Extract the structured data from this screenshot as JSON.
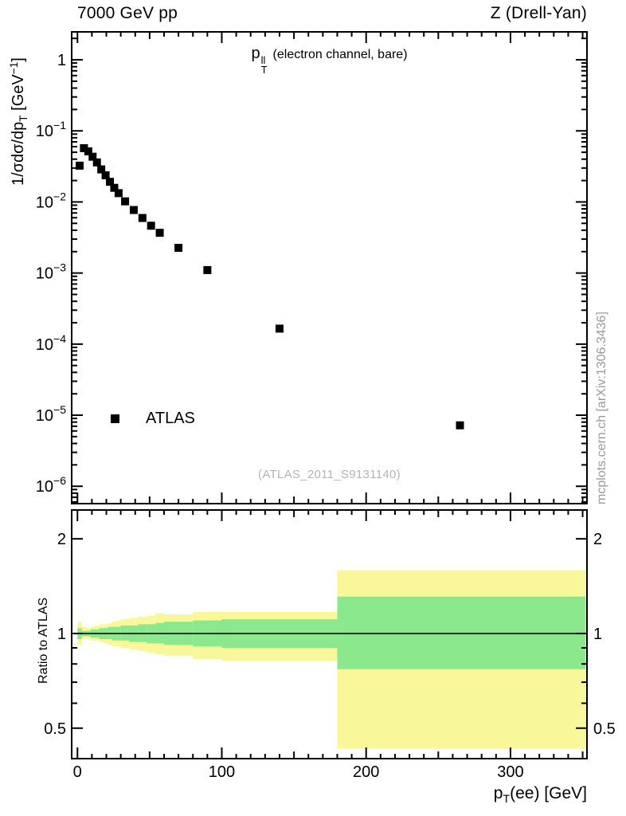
{
  "header": {
    "left": "7000 GeV pp",
    "right": "Z (Drell-Yan)"
  },
  "legend": {
    "label": "ATLAS",
    "marker": "black-square"
  },
  "watermark": "(ATLAS_2011_S9131140)",
  "side_note": "mcplots.cern.ch [arXiv:1306.3436]",
  "annotation": {
    "base": "p",
    "sup": "ll",
    "sub": "T",
    "suffix": "(electron channel, bare)"
  },
  "labels": {
    "main_y": {
      "prefix": "1/σdσ/dp",
      "sub": "T",
      "mid": " [GeV",
      "sup": "−1",
      "end": "]"
    },
    "ratio_y": "Ratio to ATLAS",
    "x": {
      "base": "p",
      "sub": "T",
      "suffix": "(ee) [GeV]"
    }
  },
  "chart_data": [
    {
      "type": "scatter",
      "name": "zpt-spectrum",
      "title": "p_T^ll (electron channel, bare)",
      "xlabel": "p_T(ee) [GeV]",
      "ylabel": "1/σdσ/dp_T [GeV^-1]",
      "yscale": "log",
      "xscale": "linear",
      "grid": false,
      "legend_position": "left-middle",
      "xlim": [
        -4,
        353
      ],
      "ylim": [
        5.7e-07,
        2.47
      ],
      "xticks": [
        0,
        100,
        200,
        300
      ],
      "ytick_exponents": [
        0,
        -1,
        -2,
        -3,
        -4,
        -5,
        -6
      ],
      "series": [
        {
          "name": "ATLAS",
          "marker": "square",
          "color": "#000000",
          "x": [
            1.5,
            4.5,
            7.5,
            10.5,
            13.5,
            16.5,
            19.5,
            22.5,
            25.5,
            28.5,
            33,
            39,
            45,
            51,
            57,
            70,
            90,
            140,
            265
          ],
          "y": [
            0.0324,
            0.0571,
            0.0516,
            0.0433,
            0.036,
            0.0287,
            0.0237,
            0.0192,
            0.0158,
            0.0133,
            0.0102,
            0.0077,
            0.00595,
            0.00463,
            0.00368,
            0.00226,
            0.0011,
            0.000165,
            7.2e-06
          ]
        }
      ]
    },
    {
      "type": "area",
      "name": "ratio-to-atlas-bands",
      "ylabel": "Ratio to ATLAS",
      "yscale": "log",
      "xlim": [
        -4,
        353
      ],
      "ylim": [
        0.4,
        2.47
      ],
      "xticks": [
        0,
        100,
        200,
        300
      ],
      "yticks": [
        0.5,
        1,
        2
      ],
      "yticks_minor": [
        0.4,
        0.6,
        0.7,
        0.8,
        0.9
      ],
      "reference_line": 1,
      "colors": {
        "outer_band": "#f8f79a",
        "inner_band": "#8ce88c"
      },
      "bins": [
        {
          "x": [
            0,
            3
          ],
          "inner": [
            0.96,
            1.04
          ],
          "outer": [
            0.92,
            1.09
          ]
        },
        {
          "x": [
            3,
            6
          ],
          "inner": [
            0.98,
            1.02
          ],
          "outer": [
            0.96,
            1.05
          ]
        },
        {
          "x": [
            6,
            9
          ],
          "inner": [
            0.98,
            1.02
          ],
          "outer": [
            0.96,
            1.04
          ]
        },
        {
          "x": [
            9,
            12
          ],
          "inner": [
            0.97,
            1.03
          ],
          "outer": [
            0.95,
            1.05
          ]
        },
        {
          "x": [
            12,
            15
          ],
          "inner": [
            0.97,
            1.03
          ],
          "outer": [
            0.95,
            1.06
          ]
        },
        {
          "x": [
            15,
            18
          ],
          "inner": [
            0.96,
            1.04
          ],
          "outer": [
            0.94,
            1.07
          ]
        },
        {
          "x": [
            18,
            21
          ],
          "inner": [
            0.96,
            1.04
          ],
          "outer": [
            0.93,
            1.07
          ]
        },
        {
          "x": [
            21,
            24
          ],
          "inner": [
            0.96,
            1.05
          ],
          "outer": [
            0.92,
            1.08
          ]
        },
        {
          "x": [
            24,
            27
          ],
          "inner": [
            0.95,
            1.05
          ],
          "outer": [
            0.91,
            1.09
          ]
        },
        {
          "x": [
            27,
            30
          ],
          "inner": [
            0.95,
            1.05
          ],
          "outer": [
            0.91,
            1.1
          ]
        },
        {
          "x": [
            30,
            36
          ],
          "inner": [
            0.95,
            1.06
          ],
          "outer": [
            0.9,
            1.11
          ]
        },
        {
          "x": [
            36,
            42
          ],
          "inner": [
            0.94,
            1.06
          ],
          "outer": [
            0.89,
            1.12
          ]
        },
        {
          "x": [
            42,
            48
          ],
          "inner": [
            0.94,
            1.07
          ],
          "outer": [
            0.88,
            1.13
          ]
        },
        {
          "x": [
            48,
            54
          ],
          "inner": [
            0.93,
            1.07
          ],
          "outer": [
            0.87,
            1.14
          ]
        },
        {
          "x": [
            54,
            60
          ],
          "inner": [
            0.93,
            1.08
          ],
          "outer": [
            0.86,
            1.16
          ]
        },
        {
          "x": [
            60,
            80
          ],
          "inner": [
            0.92,
            1.09
          ],
          "outer": [
            0.85,
            1.15
          ]
        },
        {
          "x": [
            80,
            100
          ],
          "inner": [
            0.91,
            1.1
          ],
          "outer": [
            0.83,
            1.17
          ]
        },
        {
          "x": [
            100,
            180
          ],
          "inner": [
            0.9,
            1.11
          ],
          "outer": [
            0.82,
            1.17
          ]
        },
        {
          "x": [
            180,
            352
          ],
          "inner": [
            0.77,
            1.31
          ],
          "outer": [
            0.43,
            1.59
          ]
        }
      ]
    }
  ]
}
